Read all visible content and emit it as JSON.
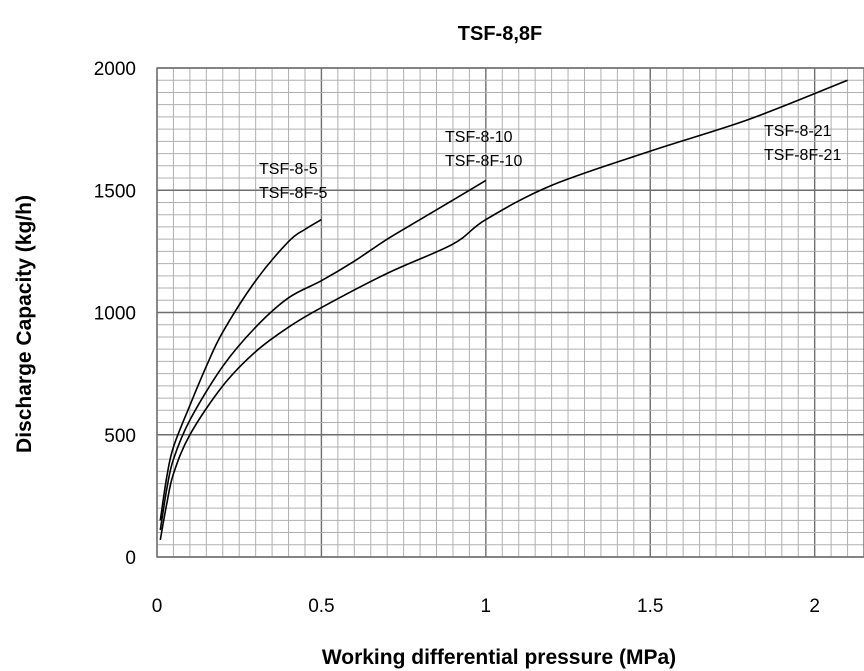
{
  "chart_data": {
    "type": "line",
    "title": "TSF-8,8F",
    "xlabel": "Working differential pressure (MPa)",
    "ylabel": "Discharge Capacity (kg/h)",
    "xlim": [
      0,
      2.15
    ],
    "ylim": [
      0,
      2000
    ],
    "x_ticks": [
      0,
      0.5,
      1,
      1.5,
      2
    ],
    "x_tick_labels": [
      "0",
      "0.5",
      "1",
      "1.5",
      "2"
    ],
    "y_ticks": [
      0,
      500,
      1000,
      1500,
      2000
    ],
    "y_tick_labels": [
      "0",
      "500",
      "1000",
      "1500",
      "2000"
    ],
    "grid": true,
    "series": [
      {
        "label_lines": [
          "TSF-8-5",
          "TSF-8F-5"
        ],
        "points": [
          [
            0.01,
            150
          ],
          [
            0.03,
            330
          ],
          [
            0.05,
            450
          ],
          [
            0.1,
            620
          ],
          [
            0.15,
            780
          ],
          [
            0.2,
            920
          ],
          [
            0.3,
            1130
          ],
          [
            0.4,
            1290
          ],
          [
            0.45,
            1340
          ],
          [
            0.5,
            1380
          ]
        ]
      },
      {
        "label_lines": [
          "TSF-8-10",
          "TSF-8F-10"
        ],
        "points": [
          [
            0.01,
            110
          ],
          [
            0.03,
            280
          ],
          [
            0.05,
            400
          ],
          [
            0.1,
            560
          ],
          [
            0.2,
            780
          ],
          [
            0.3,
            940
          ],
          [
            0.4,
            1060
          ],
          [
            0.5,
            1130
          ],
          [
            0.6,
            1210
          ],
          [
            0.7,
            1300
          ],
          [
            0.8,
            1380
          ],
          [
            0.9,
            1460
          ],
          [
            1.0,
            1540
          ]
        ]
      },
      {
        "label_lines": [
          "TSF-8-21",
          "TSF-8F-21"
        ],
        "points": [
          [
            0.01,
            70
          ],
          [
            0.03,
            220
          ],
          [
            0.05,
            340
          ],
          [
            0.1,
            500
          ],
          [
            0.2,
            700
          ],
          [
            0.3,
            840
          ],
          [
            0.4,
            940
          ],
          [
            0.5,
            1020
          ],
          [
            0.7,
            1160
          ],
          [
            0.9,
            1280
          ],
          [
            1.0,
            1380
          ],
          [
            1.2,
            1520
          ],
          [
            1.5,
            1660
          ],
          [
            1.8,
            1790
          ],
          [
            2.1,
            1950
          ]
        ]
      }
    ]
  }
}
